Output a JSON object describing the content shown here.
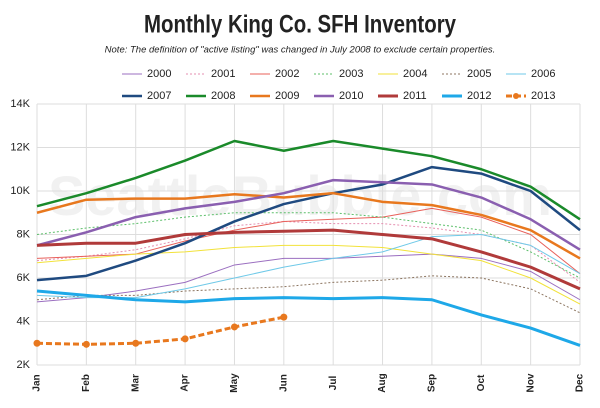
{
  "chart_data": {
    "type": "line",
    "title": "Monthly King Co. SFH Inventory",
    "subtitle": "Note: The definition of \"active listing\" was changed in July 2008 to exclude certain properties.",
    "watermark": "SeattleBubble.com",
    "categories": [
      "Jan",
      "Feb",
      "Mar",
      "Apr",
      "May",
      "Jun",
      "Jul",
      "Aug",
      "Sep",
      "Oct",
      "Nov",
      "Dec"
    ],
    "ylim": [
      2000,
      14000
    ],
    "yticks": [
      {
        "value": 2000,
        "label": "2K"
      },
      {
        "value": 4000,
        "label": "4K"
      },
      {
        "value": 6000,
        "label": "6K"
      },
      {
        "value": 8000,
        "label": "8K"
      },
      {
        "value": 10000,
        "label": "10K"
      },
      {
        "value": 12000,
        "label": "12K"
      },
      {
        "value": 14000,
        "label": "14K"
      }
    ],
    "grid": true,
    "legend": "top",
    "series": [
      {
        "name": "2000",
        "color": "#9b6fc0",
        "width": 1,
        "dash": "solid",
        "values": [
          4900,
          5100,
          5400,
          5800,
          6600,
          6900,
          6900,
          7000,
          7100,
          6900,
          6300,
          5000
        ]
      },
      {
        "name": "2001",
        "color": "#e58fb0",
        "width": 1,
        "dash": "dotted",
        "values": [
          6800,
          7000,
          7300,
          7800,
          8400,
          8600,
          8500,
          8500,
          8300,
          8000,
          7500,
          5800
        ]
      },
      {
        "name": "2002",
        "color": "#e8605a",
        "width": 1,
        "dash": "solid",
        "values": [
          6900,
          7000,
          7100,
          7700,
          8200,
          8600,
          8700,
          8800,
          9200,
          8800,
          8000,
          6200
        ]
      },
      {
        "name": "2003",
        "color": "#5cbf6a",
        "width": 1,
        "dash": "dotted",
        "values": [
          8000,
          8300,
          8500,
          8800,
          9000,
          9000,
          9000,
          8800,
          8500,
          8200,
          7200,
          6000
        ]
      },
      {
        "name": "2004",
        "color": "#f2e23a",
        "width": 1,
        "dash": "solid",
        "values": [
          6700,
          6900,
          7100,
          7200,
          7400,
          7500,
          7500,
          7400,
          7100,
          6800,
          6000,
          4800
        ]
      },
      {
        "name": "2005",
        "color": "#8c7560",
        "width": 1,
        "dash": "dotted",
        "values": [
          5000,
          5200,
          5200,
          5400,
          5500,
          5600,
          5800,
          5900,
          6100,
          6000,
          5500,
          4400
        ]
      },
      {
        "name": "2006",
        "color": "#6fc9e8",
        "width": 1,
        "dash": "solid",
        "values": [
          5200,
          5100,
          5100,
          5500,
          6000,
          6500,
          6900,
          7200,
          7900,
          8000,
          7500,
          6200
        ]
      },
      {
        "name": "2007",
        "color": "#1f4a80",
        "width": 2.5,
        "dash": "solid",
        "values": [
          5900,
          6100,
          6800,
          7600,
          8600,
          9400,
          9900,
          10300,
          11100,
          10800,
          10000,
          8200
        ]
      },
      {
        "name": "2008",
        "color": "#1a8a2a",
        "width": 2.5,
        "dash": "solid",
        "values": [
          9300,
          9900,
          10600,
          11400,
          12300,
          11850,
          12300,
          11950,
          11600,
          11000,
          10200,
          8700
        ]
      },
      {
        "name": "2009",
        "color": "#e8781e",
        "width": 2.5,
        "dash": "solid",
        "values": [
          9000,
          9600,
          9650,
          9650,
          9850,
          9700,
          9900,
          9500,
          9350,
          8900,
          8200,
          6900
        ]
      },
      {
        "name": "2010",
        "color": "#8a5fb0",
        "width": 2.5,
        "dash": "solid",
        "values": [
          7500,
          8100,
          8800,
          9200,
          9500,
          9900,
          10500,
          10400,
          10300,
          9700,
          8700,
          7300
        ]
      },
      {
        "name": "2011",
        "color": "#b03a3a",
        "width": 3,
        "dash": "solid",
        "values": [
          7500,
          7600,
          7600,
          8000,
          8100,
          8150,
          8200,
          8000,
          7800,
          7200,
          6500,
          5500
        ]
      },
      {
        "name": "2012",
        "color": "#1ea8e8",
        "width": 3,
        "dash": "solid",
        "values": [
          5400,
          5200,
          5000,
          4900,
          5050,
          5100,
          5050,
          5100,
          5000,
          4300,
          3700,
          2900
        ]
      },
      {
        "name": "2013",
        "color": "#e8781e",
        "width": 3,
        "dash": "dashed",
        "markers": true,
        "values": [
          3000,
          2950,
          3000,
          3200,
          3750,
          4200,
          null,
          null,
          null,
          null,
          null,
          null
        ]
      }
    ]
  }
}
